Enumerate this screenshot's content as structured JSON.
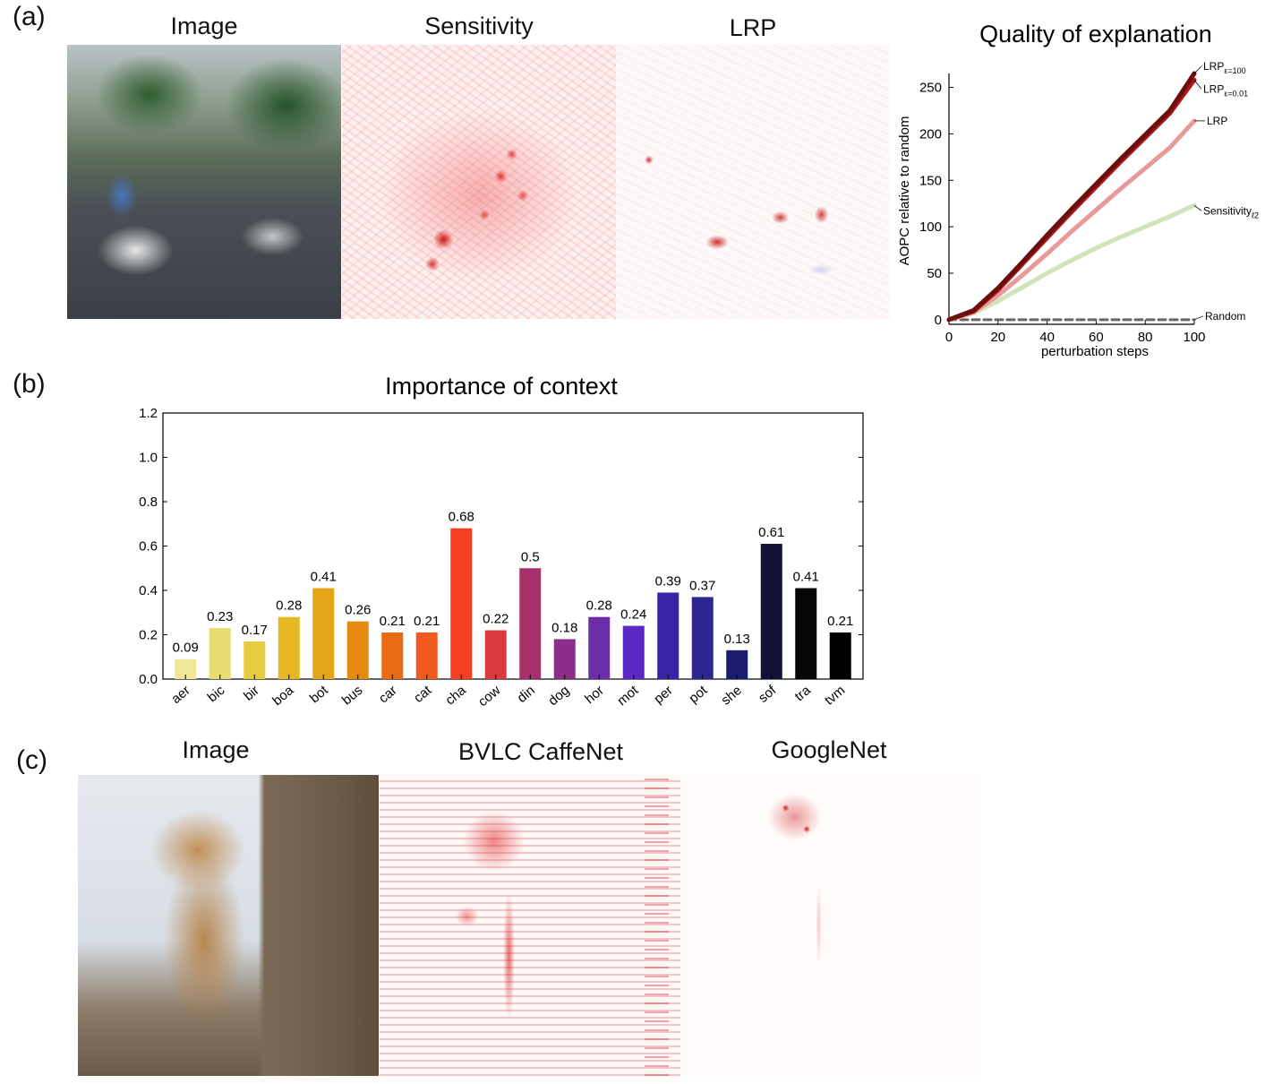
{
  "panels": {
    "a": {
      "label": "(a)",
      "tiles": {
        "image": "Image",
        "sensitivity": "Sensitivity",
        "lrp": "LRP"
      }
    },
    "b": {
      "label": "(b)"
    },
    "c": {
      "label": "(c)",
      "tiles": {
        "image": "Image",
        "caffenet": "BVLC CaffeNet",
        "googlenet": "GoogleNet"
      }
    }
  },
  "chart_data": [
    {
      "type": "line",
      "title": "Quality of explanation",
      "xlabel": "perturbation steps",
      "ylabel": "AOPC relative to random",
      "xlim": [
        0,
        100
      ],
      "ylim": [
        -5,
        265
      ],
      "xticks": [
        0,
        20,
        40,
        60,
        80,
        100
      ],
      "yticks": [
        0,
        50,
        100,
        150,
        200,
        250
      ],
      "grid": false,
      "series": [
        {
          "name": "LRP",
          "sub": "ε=100",
          "color": "#6b0e0e",
          "x": [
            0,
            10,
            20,
            30,
            40,
            50,
            60,
            70,
            80,
            90,
            100
          ],
          "y": [
            0,
            10,
            34,
            62,
            91,
            119,
            146,
            173,
            199,
            225,
            265
          ]
        },
        {
          "name": "LRP",
          "sub": "ε=0.01",
          "color": "#b01818",
          "x": [
            0,
            10,
            20,
            30,
            40,
            50,
            60,
            70,
            80,
            90,
            100
          ],
          "y": [
            0,
            9,
            32,
            60,
            88,
            116,
            143,
            170,
            196,
            222,
            258
          ]
        },
        {
          "name": "LRP",
          "color": "#e89a9a",
          "x": [
            0,
            10,
            20,
            30,
            40,
            50,
            60,
            70,
            80,
            90,
            100
          ],
          "y": [
            0,
            8,
            26,
            48,
            71,
            95,
            118,
            141,
            163,
            185,
            214
          ]
        },
        {
          "name": "Sensitivity",
          "sub": "ℓ2",
          "color": "#cfe4b8",
          "x": [
            0,
            10,
            20,
            30,
            40,
            50,
            60,
            70,
            80,
            90,
            100
          ],
          "y": [
            0,
            7,
            20,
            35,
            50,
            64,
            77,
            89,
            100,
            111,
            123
          ]
        },
        {
          "name": "Random",
          "color": "#666666",
          "dashed": true,
          "x": [
            0,
            100
          ],
          "y": [
            0,
            0
          ]
        }
      ]
    },
    {
      "type": "bar",
      "title": "Importance of context",
      "xlabel": "",
      "ylabel": "",
      "ylim": [
        0,
        1.2
      ],
      "yticks": [
        "0.0",
        "0.2",
        "0.4",
        "0.6",
        "0.8",
        "1.0",
        "1.2"
      ],
      "categories": [
        "aer",
        "bic",
        "bir",
        "boa",
        "bot",
        "bus",
        "car",
        "cat",
        "cha",
        "cow",
        "din",
        "dog",
        "hor",
        "mot",
        "per",
        "pot",
        "she",
        "sof",
        "tra",
        "tvm"
      ],
      "values": [
        0.09,
        0.23,
        0.17,
        0.28,
        0.41,
        0.26,
        0.21,
        0.21,
        0.68,
        0.22,
        0.5,
        0.18,
        0.28,
        0.24,
        0.39,
        0.37,
        0.13,
        0.61,
        0.41,
        0.21
      ],
      "labels": [
        "0.09",
        "0.23",
        "0.17",
        "0.28",
        "0.41",
        "0.26",
        "0.21",
        "0.21",
        "0.68",
        "0.22",
        "0.5",
        "0.18",
        "0.28",
        "0.24",
        "0.39",
        "0.37",
        "0.13",
        "0.61",
        "0.41",
        "0.21"
      ],
      "colors": [
        "#efe69a",
        "#e8dc72",
        "#e6cc3e",
        "#e6b823",
        "#e3a51c",
        "#e48a10",
        "#ea6a12",
        "#f05a1e",
        "#f53f25",
        "#d83a3d",
        "#a83068",
        "#8c2e88",
        "#6c2da8",
        "#5a28c4",
        "#3a22a6",
        "#2d2690",
        "#1c1c6c",
        "#121236",
        "#060606",
        "#000000"
      ]
    }
  ]
}
